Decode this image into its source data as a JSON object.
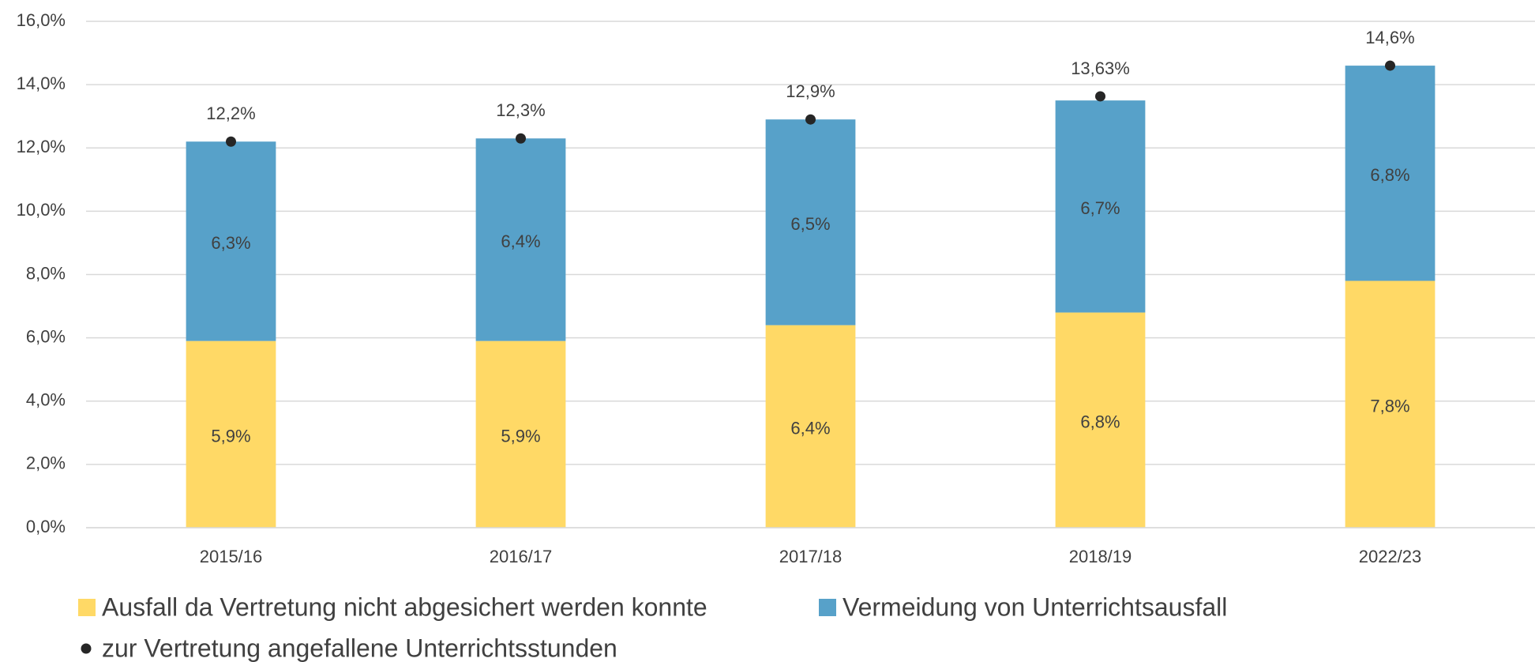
{
  "chart_data": {
    "type": "bar",
    "stacked": true,
    "categories": [
      "2015/16",
      "2016/17",
      "2017/18",
      "2018/19",
      "2022/23"
    ],
    "series": [
      {
        "name": "Ausfall da Vertretung nicht abgesichert werden konnte",
        "color": "#FFD966",
        "type": "bar",
        "values": [
          5.9,
          5.9,
          6.4,
          6.8,
          7.8
        ],
        "value_labels": [
          "5,9%",
          "5,9%",
          "6,4%",
          "6,8%",
          "7,8%"
        ]
      },
      {
        "name": "Vermeidung von Unterrichtsausfall",
        "color": "#57A1C9",
        "type": "bar",
        "values": [
          6.3,
          6.4,
          6.5,
          6.7,
          6.8
        ],
        "value_labels": [
          "6,3%",
          "6,4%",
          "6,5%",
          "6,7%",
          "6,8%"
        ]
      },
      {
        "name": "zur Vertretung angefallene Unterrichtsstunden",
        "color": "#262626",
        "type": "point",
        "values": [
          12.2,
          12.3,
          12.9,
          13.63,
          14.6
        ],
        "value_labels": [
          "12,2%",
          "12,3%",
          "12,9%",
          "13,63%",
          "14,6%"
        ]
      }
    ],
    "ylim": [
      0,
      16
    ],
    "yticks": [
      {
        "value": 0,
        "label": "0,0%"
      },
      {
        "value": 2,
        "label": "2,0%"
      },
      {
        "value": 4,
        "label": "4,0%"
      },
      {
        "value": 6,
        "label": "6,0%"
      },
      {
        "value": 8,
        "label": "8,0%"
      },
      {
        "value": 10,
        "label": "10,0%"
      },
      {
        "value": 12,
        "label": "12,0%"
      },
      {
        "value": 14,
        "label": "14,0%"
      },
      {
        "value": 16,
        "label": "16,0%"
      }
    ],
    "grid": true
  }
}
